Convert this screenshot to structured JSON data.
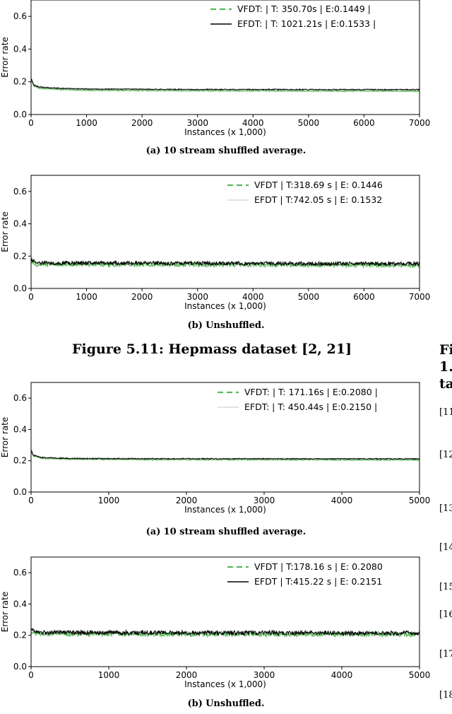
{
  "figure_5_11": {
    "title": "Figure 5.11: Hepmass dataset [2, 21]",
    "captions": [
      {
        "tag": "(a)",
        "text": "10 stream shuffled average."
      },
      {
        "tag": "(b)",
        "text": "Unshuffled."
      }
    ]
  },
  "figure_next": {
    "captions": [
      {
        "tag": "(a)",
        "text": "10 stream shuffled average."
      },
      {
        "tag": "(b)",
        "text": "Unshuffled."
      }
    ]
  },
  "right_column_fragments": {
    "heading_lines": [
      "Fi",
      "1.",
      "ta"
    ],
    "refs": [
      "[11",
      "[12",
      "[13",
      "[14",
      "[15",
      "[16",
      "[17",
      "[18"
    ]
  },
  "colors": {
    "vfdt": "#5cb85c",
    "efdt": "#000000"
  },
  "chart_data": [
    {
      "type": "line",
      "xlabel": "Instances (x 1,000)",
      "ylabel": "Error rate",
      "xlim": [
        0,
        7000
      ],
      "ylim": [
        0,
        0.7
      ],
      "xticks": [
        0,
        1000,
        2000,
        3000,
        4000,
        5000,
        6000,
        7000
      ],
      "yticks": [
        0.0,
        0.2,
        0.4,
        0.6
      ],
      "legend_position": "top-right",
      "noise": 0.003,
      "series": [
        {
          "name": "VFDT: | T: 350.70s |  E:0.1449 |",
          "style": "dashed",
          "x": [
            0,
            50,
            150,
            400,
            1000,
            3000,
            7000
          ],
          "y": [
            0.21,
            0.175,
            0.16,
            0.155,
            0.148,
            0.145,
            0.143
          ]
        },
        {
          "name": "EFDT: | T: 1021.21s |  E:0.1533 |",
          "style": "solid",
          "x": [
            0,
            50,
            150,
            400,
            1000,
            3000,
            7000
          ],
          "y": [
            0.22,
            0.18,
            0.168,
            0.162,
            0.156,
            0.153,
            0.152
          ]
        }
      ]
    },
    {
      "type": "line",
      "xlabel": "Instances (x 1,000)",
      "ylabel": "Error rate",
      "xlim": [
        0,
        7000
      ],
      "ylim": [
        0,
        0.7
      ],
      "xticks": [
        0,
        1000,
        2000,
        3000,
        4000,
        5000,
        6000,
        7000
      ],
      "yticks": [
        0.0,
        0.2,
        0.4,
        0.6
      ],
      "legend_position": "top-right",
      "noise": 0.012,
      "series": [
        {
          "name": "VFDT | T:318.69 s | E: 0.1446",
          "style": "dashed",
          "x": [
            0,
            100,
            7000
          ],
          "y": [
            0.17,
            0.15,
            0.144
          ]
        },
        {
          "name": "EFDT | T:742.05 s | E: 0.1532",
          "style": "solid",
          "x": [
            0,
            100,
            7000
          ],
          "y": [
            0.18,
            0.158,
            0.152
          ]
        }
      ]
    },
    {
      "type": "line",
      "xlabel": "Instances (x 1,000)",
      "ylabel": "Error rate",
      "xlim": [
        0,
        5000
      ],
      "ylim": [
        0,
        0.7
      ],
      "xticks": [
        0,
        1000,
        2000,
        3000,
        4000,
        5000
      ],
      "yticks": [
        0.0,
        0.2,
        0.4,
        0.6
      ],
      "legend_position": "top-right",
      "noise": 0.003,
      "series": [
        {
          "name": "VFDT: | T: 171.16s |  E:0.2080 |",
          "style": "dashed",
          "x": [
            0,
            30,
            150,
            500,
            1500,
            5000
          ],
          "y": [
            0.26,
            0.23,
            0.215,
            0.21,
            0.207,
            0.205
          ]
        },
        {
          "name": "EFDT: | T: 450.44s |  E:0.2150 |",
          "style": "solid",
          "x": [
            0,
            30,
            150,
            500,
            1500,
            5000
          ],
          "y": [
            0.27,
            0.235,
            0.22,
            0.215,
            0.213,
            0.212
          ]
        }
      ]
    },
    {
      "type": "line",
      "xlabel": "Instances (x 1,000)",
      "ylabel": "Error rate",
      "xlim": [
        0,
        5000
      ],
      "ylim": [
        0,
        0.7
      ],
      "xticks": [
        0,
        1000,
        2000,
        3000,
        4000,
        5000
      ],
      "yticks": [
        0.0,
        0.2,
        0.4,
        0.6
      ],
      "legend_position": "top-right",
      "noise": 0.014,
      "series": [
        {
          "name": "VFDT | T:178.16 s | E: 0.2080",
          "style": "dashed",
          "x": [
            0,
            100,
            5000
          ],
          "y": [
            0.22,
            0.21,
            0.207
          ]
        },
        {
          "name": "EFDT | T:415.22 s | E: 0.2151",
          "style": "solid",
          "x": [
            0,
            100,
            5000
          ],
          "y": [
            0.23,
            0.218,
            0.214
          ]
        }
      ]
    }
  ]
}
